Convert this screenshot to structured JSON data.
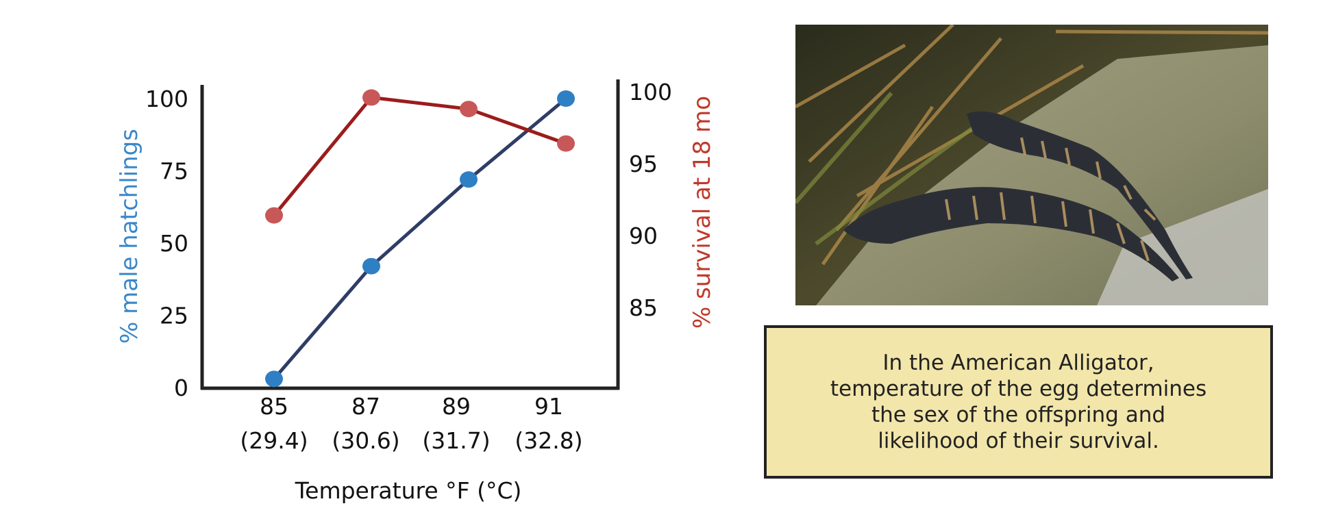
{
  "chart_data": {
    "type": "line",
    "xlabel": "Temperature °F (°C)",
    "categories": [
      "85",
      "87",
      "89",
      "91"
    ],
    "category_sublabels": [
      "(29.4)",
      "(30.6)",
      "(31.7)",
      "(32.8)"
    ],
    "x": [
      85,
      87,
      89,
      91
    ],
    "y_left": {
      "label": "% male hatchlings",
      "ticks": [
        "0",
        "25",
        "50",
        "75",
        "100"
      ],
      "range": [
        0,
        100
      ],
      "color": "#3a87c9"
    },
    "y_right": {
      "label": "% survival at 18 mo",
      "ticks": [
        "85",
        "90",
        "95",
        "100"
      ],
      "range": [
        80,
        100
      ],
      "color": "#c0392b"
    },
    "series": [
      {
        "axis": "left",
        "values": [
          3,
          42,
          72,
          100
        ],
        "line_color": "#2f3d66",
        "marker_color": "#2f7fc4"
      },
      {
        "axis": "right",
        "values": [
          91.4,
          99.6,
          98.8,
          96.4
        ],
        "line_color": "#9b1c1c",
        "marker_color": "#c85858"
      }
    ],
    "grid": false
  },
  "caption": {
    "lines": [
      "In the American Alligator,",
      "temperature of the egg determines",
      "the sex of the offspring and",
      "likelihood of their survival."
    ]
  },
  "photo": {
    "subject": "two juvenile American alligators on a rock"
  }
}
